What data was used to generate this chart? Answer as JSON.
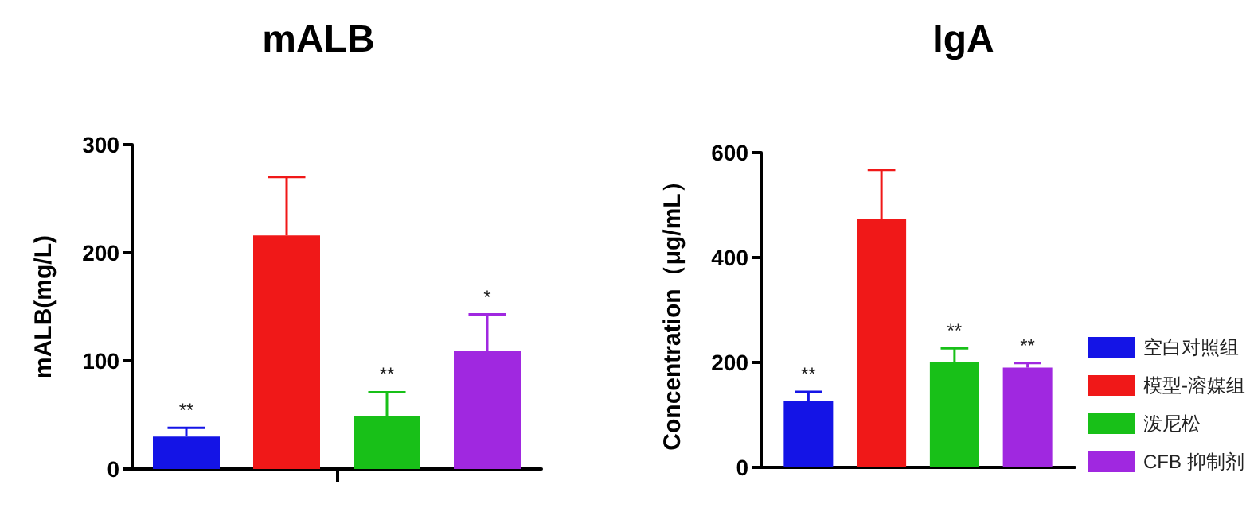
{
  "chart_data": [
    {
      "type": "bar",
      "title": "mALB",
      "ylabel": "mALB(mg/L)",
      "categories": [
        null
      ],
      "ylim": [
        0,
        300
      ],
      "yticks": [
        0,
        100,
        200,
        300
      ],
      "legend": false,
      "grid": false,
      "series": [
        {
          "color": "#1414e6",
          "values": [
            30
          ],
          "errors": [
            [
              30,
              38
            ]
          ],
          "value_labels": [
            "**"
          ]
        },
        {
          "color": "#f01818",
          "values": [
            216
          ],
          "errors": [
            [
              216,
              270
            ]
          ],
          "value_labels": [
            null
          ]
        },
        {
          "color": "#18c018",
          "values": [
            49
          ],
          "errors": [
            [
              49,
              71
            ]
          ],
          "value_labels": [
            "**"
          ]
        },
        {
          "color": "#a028e0",
          "values": [
            109
          ],
          "errors": [
            [
              109,
              143
            ]
          ],
          "value_labels": [
            "*"
          ]
        }
      ]
    },
    {
      "type": "bar",
      "title": "IgA",
      "ylabel": "Concentration（μg/mL）",
      "categories": [
        null
      ],
      "ylim": [
        0,
        600
      ],
      "yticks": [
        0,
        200,
        400,
        600
      ],
      "legend": "right",
      "grid": false,
      "series": [
        {
          "name": "空白对照组",
          "color": "#1414e6",
          "values": [
            126
          ],
          "errors": [
            [
              126,
              144
            ]
          ],
          "value_labels": [
            "**"
          ]
        },
        {
          "name": "模型-溶媒组",
          "color": "#f01818",
          "values": [
            474
          ],
          "errors": [
            [
              474,
              567
            ]
          ],
          "value_labels": [
            null
          ]
        },
        {
          "name": "泼尼松",
          "color": "#18c018",
          "values": [
            201
          ],
          "errors": [
            [
              201,
              227
            ]
          ],
          "value_labels": [
            "**"
          ]
        },
        {
          "name": "CFB 抑制剂",
          "color": "#a028e0",
          "values": [
            190
          ],
          "errors": [
            [
              190,
              199
            ]
          ],
          "value_labels": [
            "**"
          ]
        }
      ]
    }
  ]
}
